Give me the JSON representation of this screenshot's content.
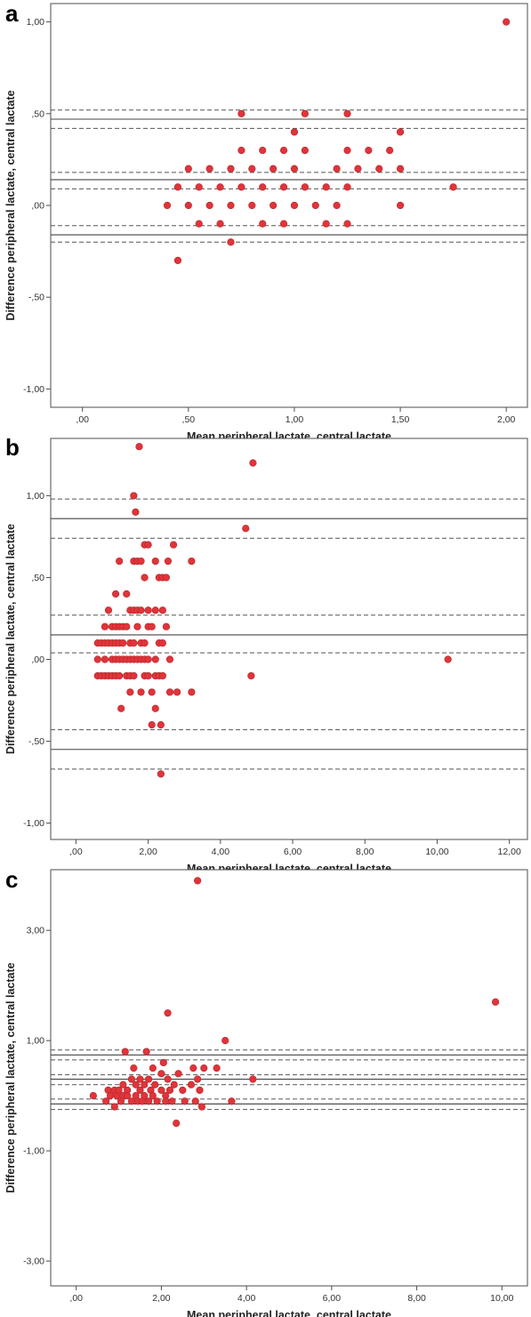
{
  "chart_data": [
    {
      "type": "scatter",
      "panel_label": "a",
      "xlabel": "Mean peripheral lactate, central lactate",
      "ylabel": "Difference peripheral lactate, central lactate",
      "xlim": [
        -0.15,
        2.1
      ],
      "ylim": [
        -1.1,
        1.1
      ],
      "xticks": [
        0,
        0.5,
        1.0,
        1.5,
        2.0
      ],
      "xtick_labels": [
        ",00",
        ",50",
        "1,00",
        "1,50",
        "2,00"
      ],
      "yticks": [
        -1.0,
        -0.5,
        0,
        0.5,
        1.0
      ],
      "ytick_labels": [
        "-1,00",
        "-,50",
        ",00",
        ",50",
        "1,00"
      ],
      "grid": false,
      "marker_color": "#e0343a",
      "solid_lines": [
        0.47,
        0.14,
        -0.16
      ],
      "dashed_lines": [
        0.52,
        0.42,
        0.18,
        0.09,
        -0.11,
        -0.2
      ],
      "points": [
        [
          0.4,
          0.0
        ],
        [
          0.45,
          0.1
        ],
        [
          0.45,
          -0.3
        ],
        [
          0.5,
          0.2
        ],
        [
          0.5,
          0.0
        ],
        [
          0.55,
          0.1
        ],
        [
          0.55,
          -0.1
        ],
        [
          0.6,
          0.2
        ],
        [
          0.6,
          0.0
        ],
        [
          0.65,
          0.1
        ],
        [
          0.65,
          -0.1
        ],
        [
          0.7,
          0.2
        ],
        [
          0.7,
          0.0
        ],
        [
          0.7,
          -0.2
        ],
        [
          0.75,
          0.5
        ],
        [
          0.75,
          0.3
        ],
        [
          0.75,
          0.1
        ],
        [
          0.8,
          0.2
        ],
        [
          0.8,
          0.0
        ],
        [
          0.85,
          0.3
        ],
        [
          0.85,
          0.1
        ],
        [
          0.85,
          -0.1
        ],
        [
          0.9,
          0.2
        ],
        [
          0.9,
          0.0
        ],
        [
          0.95,
          0.3
        ],
        [
          0.95,
          0.1
        ],
        [
          0.95,
          -0.1
        ],
        [
          1.0,
          0.4
        ],
        [
          1.0,
          0.2
        ],
        [
          1.0,
          0.0
        ],
        [
          1.05,
          0.5
        ],
        [
          1.05,
          0.3
        ],
        [
          1.05,
          0.1
        ],
        [
          1.1,
          0.0
        ],
        [
          1.15,
          0.1
        ],
        [
          1.15,
          -0.1
        ],
        [
          1.2,
          0.2
        ],
        [
          1.2,
          0.0
        ],
        [
          1.25,
          0.5
        ],
        [
          1.25,
          0.3
        ],
        [
          1.25,
          0.1
        ],
        [
          1.25,
          -0.1
        ],
        [
          1.3,
          0.2
        ],
        [
          1.35,
          0.3
        ],
        [
          1.4,
          0.2
        ],
        [
          1.45,
          0.3
        ],
        [
          1.5,
          0.4
        ],
        [
          1.5,
          0.2
        ],
        [
          1.5,
          0.0
        ],
        [
          1.75,
          0.1
        ],
        [
          2.0,
          1.0
        ]
      ]
    },
    {
      "type": "scatter",
      "panel_label": "b",
      "xlabel": "Mean peripheral lactate, central lactate",
      "ylabel": "Difference peripheral lactate, central lactate",
      "xlim": [
        -0.7,
        12.5
      ],
      "ylim": [
        -1.1,
        1.35
      ],
      "xticks": [
        0,
        2,
        4,
        6,
        8,
        10,
        12
      ],
      "xtick_labels": [
        ",00",
        "2,00",
        "4,00",
        "6,00",
        "8,00",
        "10,00",
        "12,00"
      ],
      "yticks": [
        -1.0,
        -0.5,
        0,
        0.5,
        1.0
      ],
      "ytick_labels": [
        "-1,00",
        "-,50",
        ",00",
        ",50",
        "1,00"
      ],
      "grid": false,
      "marker_color": "#e0343a",
      "solid_lines": [
        0.86,
        0.15,
        -0.55
      ],
      "dashed_lines": [
        0.98,
        0.74,
        0.27,
        0.04,
        -0.43,
        -0.67
      ],
      "points": [
        [
          0.6,
          0.1
        ],
        [
          0.6,
          0.0
        ],
        [
          0.6,
          -0.1
        ],
        [
          0.7,
          0.1
        ],
        [
          0.7,
          -0.1
        ],
        [
          0.8,
          0.2
        ],
        [
          0.8,
          0.1
        ],
        [
          0.8,
          0.0
        ],
        [
          0.8,
          -0.1
        ],
        [
          0.9,
          0.3
        ],
        [
          0.9,
          0.1
        ],
        [
          0.9,
          -0.1
        ],
        [
          1.0,
          0.2
        ],
        [
          1.0,
          0.1
        ],
        [
          1.0,
          0.0
        ],
        [
          1.0,
          -0.1
        ],
        [
          1.1,
          0.4
        ],
        [
          1.1,
          0.2
        ],
        [
          1.1,
          0.1
        ],
        [
          1.1,
          0.0
        ],
        [
          1.1,
          -0.1
        ],
        [
          1.2,
          0.6
        ],
        [
          1.2,
          0.2
        ],
        [
          1.2,
          0.1
        ],
        [
          1.2,
          0.0
        ],
        [
          1.2,
          -0.1
        ],
        [
          1.25,
          -0.3
        ],
        [
          1.3,
          0.2
        ],
        [
          1.3,
          0.1
        ],
        [
          1.3,
          0.0
        ],
        [
          1.4,
          0.4
        ],
        [
          1.4,
          0.2
        ],
        [
          1.4,
          0.0
        ],
        [
          1.4,
          -0.1
        ],
        [
          1.5,
          0.3
        ],
        [
          1.5,
          0.1
        ],
        [
          1.5,
          0.0
        ],
        [
          1.5,
          -0.1
        ],
        [
          1.5,
          -0.2
        ],
        [
          1.6,
          1.0
        ],
        [
          1.6,
          0.6
        ],
        [
          1.6,
          0.3
        ],
        [
          1.6,
          0.1
        ],
        [
          1.6,
          0.0
        ],
        [
          1.6,
          -0.1
        ],
        [
          1.65,
          0.9
        ],
        [
          1.7,
          0.6
        ],
        [
          1.7,
          0.3
        ],
        [
          1.7,
          0.2
        ],
        [
          1.7,
          0.0
        ],
        [
          1.75,
          1.3
        ],
        [
          1.8,
          0.6
        ],
        [
          1.8,
          0.3
        ],
        [
          1.8,
          0.1
        ],
        [
          1.8,
          0.0
        ],
        [
          1.8,
          -0.2
        ],
        [
          1.9,
          0.7
        ],
        [
          1.9,
          0.5
        ],
        [
          1.9,
          0.1
        ],
        [
          1.9,
          0.0
        ],
        [
          1.9,
          -0.1
        ],
        [
          2.0,
          0.7
        ],
        [
          2.0,
          0.3
        ],
        [
          2.0,
          0.2
        ],
        [
          2.0,
          0.0
        ],
        [
          2.0,
          -0.1
        ],
        [
          2.1,
          0.2
        ],
        [
          2.1,
          -0.2
        ],
        [
          2.1,
          -0.4
        ],
        [
          2.2,
          0.6
        ],
        [
          2.2,
          0.3
        ],
        [
          2.2,
          0.0
        ],
        [
          2.2,
          -0.1
        ],
        [
          2.2,
          -0.3
        ],
        [
          2.3,
          0.5
        ],
        [
          2.3,
          0.1
        ],
        [
          2.3,
          -0.1
        ],
        [
          2.35,
          -0.4
        ],
        [
          2.4,
          0.5
        ],
        [
          2.4,
          0.3
        ],
        [
          2.4,
          0.1
        ],
        [
          2.4,
          -0.1
        ],
        [
          2.35,
          -0.7
        ],
        [
          2.5,
          0.5
        ],
        [
          2.5,
          0.2
        ],
        [
          2.55,
          0.6
        ],
        [
          2.6,
          0.0
        ],
        [
          2.6,
          -0.2
        ],
        [
          2.7,
          0.7
        ],
        [
          2.8,
          -0.2
        ],
        [
          3.2,
          0.6
        ],
        [
          3.2,
          -0.2
        ],
        [
          4.7,
          0.8
        ],
        [
          4.85,
          -0.1
        ],
        [
          4.9,
          1.2
        ],
        [
          10.3,
          0.0
        ]
      ]
    },
    {
      "type": "scatter",
      "panel_label": "c",
      "xlabel": "Mean peripheral lactate, central lactate",
      "ylabel": "Difference peripheral lactate, central lactate",
      "xlim": [
        -0.6,
        10.6
      ],
      "ylim": [
        -3.45,
        4.1
      ],
      "xticks": [
        0,
        2,
        4,
        6,
        8,
        10
      ],
      "xtick_labels": [
        ",00",
        "2,00",
        "4,00",
        "6,00",
        "8,00",
        "10,00"
      ],
      "yticks": [
        -3.0,
        -1.0,
        1.0,
        3.0
      ],
      "ytick_labels": [
        "-3,00",
        "-1,00",
        "1,00",
        "3,00"
      ],
      "grid": false,
      "marker_color": "#e0343a",
      "solid_lines": [
        0.74,
        0.3,
        -0.15
      ],
      "dashed_lines": [
        0.83,
        0.65,
        0.38,
        0.2,
        -0.06,
        -0.25
      ],
      "points": [
        [
          0.4,
          0.0
        ],
        [
          0.7,
          -0.1
        ],
        [
          0.75,
          0.1
        ],
        [
          0.8,
          0.0
        ],
        [
          0.9,
          0.1
        ],
        [
          0.9,
          -0.2
        ],
        [
          0.95,
          0.0
        ],
        [
          1.0,
          0.1
        ],
        [
          1.05,
          -0.1
        ],
        [
          1.1,
          0.0
        ],
        [
          1.1,
          0.2
        ],
        [
          1.15,
          0.8
        ],
        [
          1.2,
          0.1
        ],
        [
          1.2,
          0.0
        ],
        [
          1.3,
          0.3
        ],
        [
          1.3,
          -0.1
        ],
        [
          1.35,
          0.5
        ],
        [
          1.4,
          0.2
        ],
        [
          1.4,
          0.0
        ],
        [
          1.45,
          -0.1
        ],
        [
          1.5,
          0.3
        ],
        [
          1.5,
          0.1
        ],
        [
          1.55,
          -0.1
        ],
        [
          1.6,
          0.2
        ],
        [
          1.6,
          0.0
        ],
        [
          1.65,
          0.8
        ],
        [
          1.7,
          0.3
        ],
        [
          1.7,
          -0.1
        ],
        [
          1.75,
          0.1
        ],
        [
          1.8,
          0.5
        ],
        [
          1.8,
          0.0
        ],
        [
          1.85,
          0.2
        ],
        [
          1.9,
          -0.1
        ],
        [
          2.0,
          0.4
        ],
        [
          2.0,
          0.1
        ],
        [
          2.05,
          0.6
        ],
        [
          2.1,
          0.0
        ],
        [
          2.1,
          -0.1
        ],
        [
          2.15,
          0.3
        ],
        [
          2.15,
          1.5
        ],
        [
          2.2,
          0.1
        ],
        [
          2.25,
          -0.1
        ],
        [
          2.3,
          0.2
        ],
        [
          2.35,
          -0.5
        ],
        [
          2.4,
          0.4
        ],
        [
          2.5,
          0.1
        ],
        [
          2.55,
          -0.1
        ],
        [
          2.7,
          0.2
        ],
        [
          2.75,
          0.5
        ],
        [
          2.8,
          -0.1
        ],
        [
          2.85,
          0.3
        ],
        [
          2.85,
          3.9
        ],
        [
          2.9,
          0.1
        ],
        [
          2.95,
          -0.2
        ],
        [
          3.0,
          0.5
        ],
        [
          3.3,
          0.5
        ],
        [
          3.5,
          1.0
        ],
        [
          3.65,
          -0.1
        ],
        [
          4.15,
          0.3
        ],
        [
          9.85,
          1.7
        ]
      ]
    }
  ]
}
